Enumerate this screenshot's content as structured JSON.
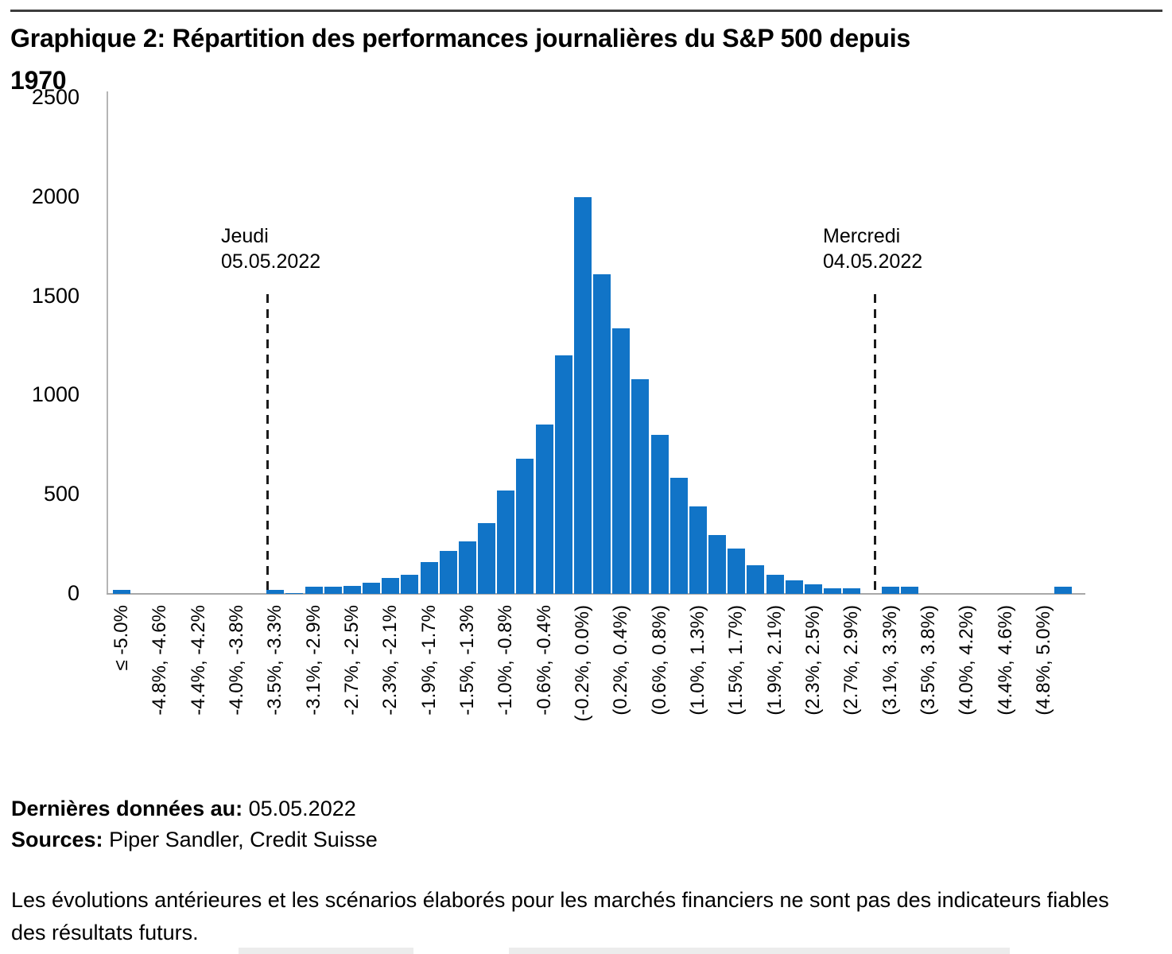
{
  "title_lines": [
    "Graphique 2: Répartition des performances journalières du S&P 500 depuis",
    "1970"
  ],
  "chart_data": {
    "type": "bar",
    "title": "Graphique 2: Répartition des performances journalières du S&P 500 depuis 1970",
    "xlabel": "",
    "ylabel": "",
    "ylim": [
      0,
      2500
    ],
    "y_ticks": [
      0,
      500,
      1000,
      1500,
      2000,
      2500
    ],
    "grid": false,
    "legend": null,
    "bar_color": "#1174c7",
    "axis_color": "#aaaaaa",
    "bin_tick_labels": [
      "≤ -5.0%",
      "-4.8%, -4.6%",
      "-4.4%, -4.2%",
      "-4.0%, -3.8%",
      "-3.5%, -3.3%",
      "-3.1%, -2.9%",
      "-2.7%, -2.5%",
      "-2.3%, -2.1%",
      "-1.9%, -1.7%",
      "-1.5%, -1.3%",
      "-1.0%, -0.8%",
      "-0.6%, -0.4%",
      "(-0.2%, 0.0%)",
      "(0.2%, 0.4%)",
      "(0.6%, 0.8%)",
      "(1.0%, 1.3%)",
      "(1.5%, 1.7%)",
      "(1.9%, 2.1%)",
      "(2.3%, 2.5%)",
      "(2.7%, 2.9%)",
      "(3.1%, 3.3%)",
      "(3.5%, 3.8%)",
      "(4.0%, 4.2%)",
      "(4.4%, 4.6%)",
      "(4.8%, 5.0%)"
    ],
    "label_every_n_bars": 2,
    "values": [
      20,
      0,
      0,
      0,
      0,
      0,
      0,
      0,
      20,
      5,
      35,
      35,
      40,
      55,
      80,
      95,
      160,
      215,
      265,
      355,
      520,
      680,
      855,
      1200,
      2000,
      1610,
      1340,
      1080,
      800,
      585,
      440,
      295,
      230,
      145,
      95,
      70,
      50,
      30,
      30,
      0,
      35,
      35,
      0,
      0,
      0,
      0,
      0,
      0,
      0,
      35
    ],
    "annotations": [
      {
        "line1": "Jeudi",
        "line2": "05.05.2022",
        "bar_index": 8,
        "style": "dashed-vertical-line"
      },
      {
        "line1": "Mercredi",
        "line2": "04.05.2022",
        "bar_index": 39,
        "style": "dashed-vertical-line"
      }
    ]
  },
  "footer": {
    "last_data_label": "Dernières données au:",
    "last_data_value": "05.05.2022",
    "sources_label": "Sources:",
    "sources_value": "Piper Sandler, Credit Suisse"
  },
  "disclaimer": "Les évolutions antérieures et les scénarios élaborés pour les marchés financiers ne sont pas des indicateurs fiables des résultats futurs."
}
